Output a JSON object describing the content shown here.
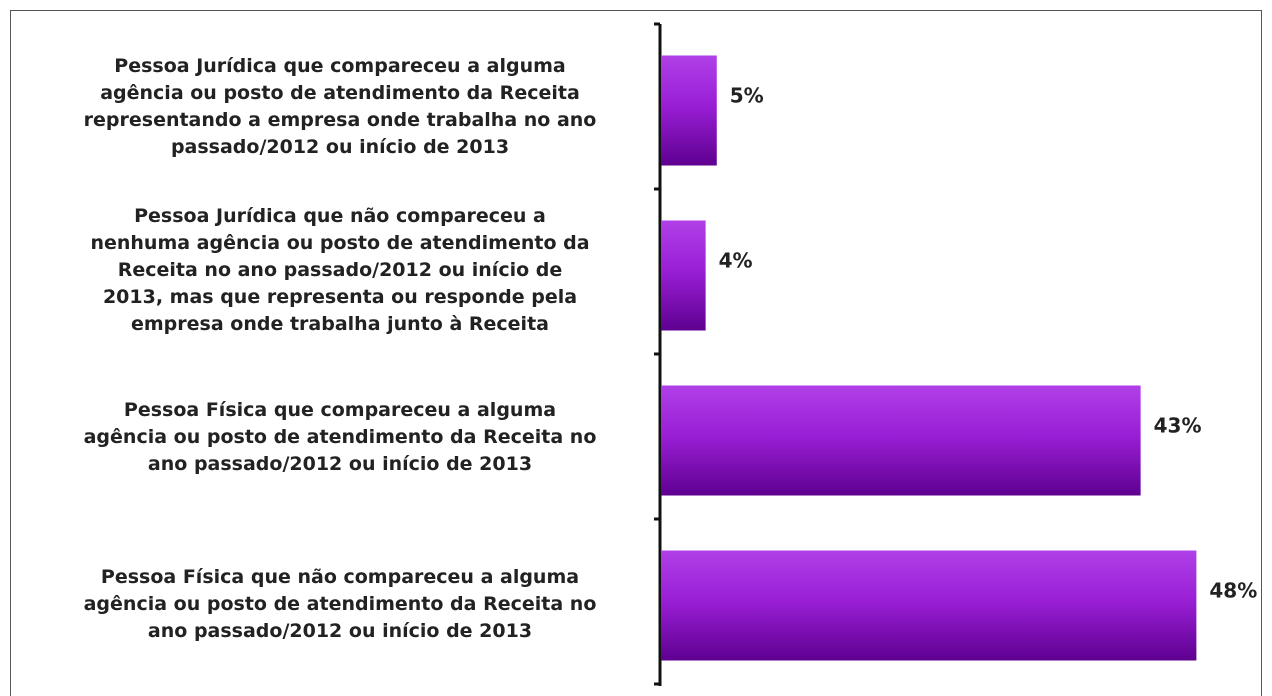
{
  "chart_data": {
    "type": "bar",
    "orientation": "horizontal",
    "categories": [
      "Pessoa Jurídica que compareceu a alguma\nagência ou posto de atendimento da Receita\nrepresentando a empresa onde trabalha no ano\npassado/2012 ou início de 2013",
      "Pessoa Jurídica que não compareceu a\nnenhuma agência ou posto de atendimento da\nReceita no ano passado/2012 ou início de\n2013, mas que representa ou responde pela\nempresa onde trabalha junto à Receita",
      "Pessoa Física que compareceu a alguma\nagência ou posto de atendimento da Receita no\nano passado/2012 ou início de 2013",
      "Pessoa Física que não compareceu a alguma\nagência ou posto de atendimento da Receita no\nano passado/2012 ou início de 2013"
    ],
    "values": [
      5,
      4,
      43,
      48
    ],
    "value_labels": [
      "5%",
      "4%",
      "43%",
      "48%"
    ],
    "xlim": [
      0,
      52
    ],
    "colors": {
      "bar_light": "#b040e8",
      "bar_mid": "#9a1fd6",
      "bar_dark": "#5e0090",
      "axis": "#111111",
      "text": "#222222"
    },
    "grid": false,
    "legend": "none"
  }
}
